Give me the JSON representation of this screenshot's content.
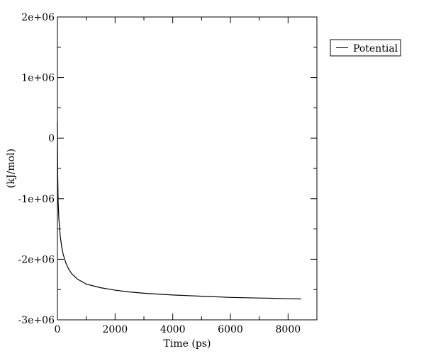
{
  "chart_data": {
    "type": "line",
    "title": "",
    "xlabel": "Time (ps)",
    "ylabel": "(kJ/mol)",
    "xlim": [
      0,
      9000
    ],
    "ylim": [
      -3000000,
      2000000
    ],
    "xticks": [
      0,
      2000,
      4000,
      6000,
      8000
    ],
    "xtick_labels": [
      "0",
      "2000",
      "4000",
      "6000",
      "8000"
    ],
    "yticks": [
      -3000000,
      -2000000,
      -1000000,
      0,
      1000000,
      2000000
    ],
    "ytick_labels": [
      "-3e+06",
      "-2e+06",
      "-1e+06",
      "0",
      "1e+06",
      "2e+06"
    ],
    "grid": false,
    "legend_position": "top-right, outside plot",
    "colors": {
      "line": "#000000",
      "frame": "#000000",
      "background": "#ffffff"
    },
    "series": [
      {
        "name": "Potential",
        "x": [
          0,
          10,
          25,
          50,
          100,
          150,
          200,
          300,
          400,
          500,
          700,
          1000,
          1500,
          2000,
          2500,
          3000,
          4000,
          5000,
          6000,
          7000,
          7500,
          8000,
          8450
        ],
        "y": [
          280000,
          -600000,
          -1050000,
          -1330000,
          -1630000,
          -1800000,
          -1920000,
          -2070000,
          -2170000,
          -2240000,
          -2330000,
          -2410000,
          -2470000,
          -2510000,
          -2540000,
          -2560000,
          -2590000,
          -2610000,
          -2630000,
          -2640000,
          -2645000,
          -2650000,
          -2655000
        ]
      }
    ]
  }
}
